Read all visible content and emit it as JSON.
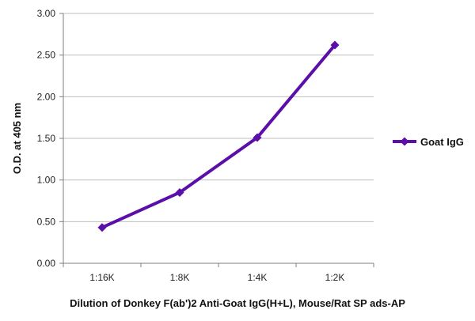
{
  "chart_data": {
    "type": "line",
    "categories": [
      "1:16K",
      "1:8K",
      "1:4K",
      "1:2K"
    ],
    "series": [
      {
        "name": "Goat IgG",
        "values": [
          0.43,
          0.85,
          1.51,
          2.62
        ],
        "color": "#5b0fa8"
      }
    ],
    "title": "",
    "xlabel": "Dilution of Donkey F(ab')2 Anti-Goat IgG(H+L), Mouse/Rat SP ads-AP",
    "ylabel": "O.D. at 405 nm",
    "ylim": [
      0,
      3
    ],
    "yticks": [
      "0.00",
      "0.50",
      "1.00",
      "1.50",
      "2.00",
      "2.50",
      "3.00"
    ],
    "grid": "horizontal",
    "legend": "right",
    "marker": "diamond"
  }
}
